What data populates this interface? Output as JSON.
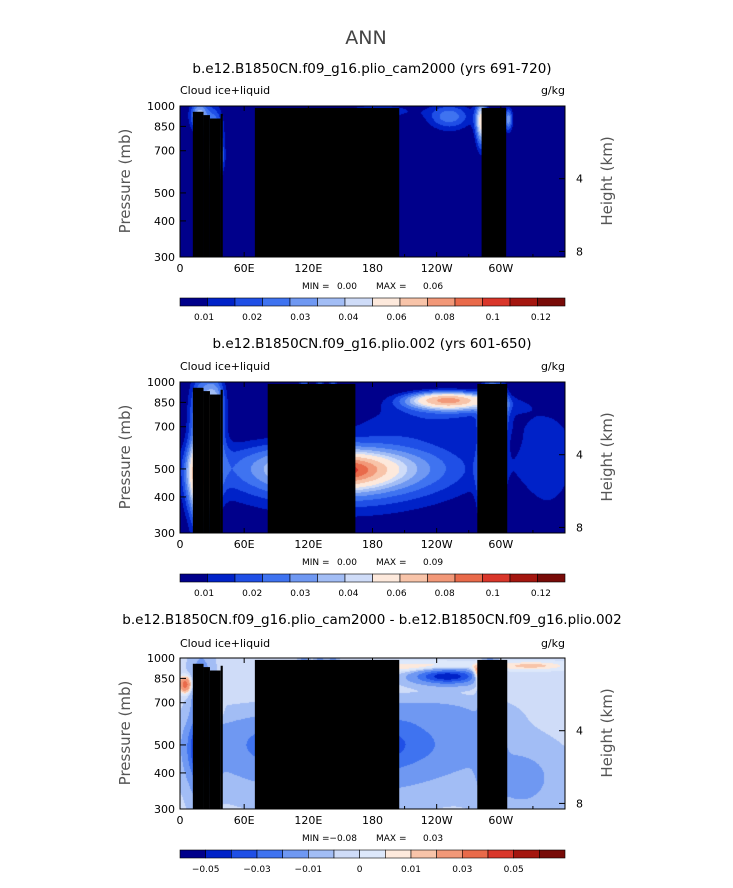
{
  "figure": {
    "title": "ANN"
  },
  "colormaps": {
    "abs": [
      "#00008b",
      "#0022c8",
      "#1f4fe6",
      "#3f73f0",
      "#6f98f2",
      "#a2bdf5",
      "#cfdcf8",
      "#fde9dc",
      "#f8c4a9",
      "#f29878",
      "#e96a4a",
      "#d9362a",
      "#a4160f",
      "#780b08"
    ],
    "diff": [
      "#00008b",
      "#0022c8",
      "#1f4fe6",
      "#3f73f0",
      "#6f98f2",
      "#a2bdf5",
      "#cfdcf8",
      "#dde8fb",
      "#fde9dc",
      "#f8c4a9",
      "#f29878",
      "#e96a4a",
      "#d9362a",
      "#a4160f",
      "#780b08"
    ]
  },
  "chart_data": [
    {
      "type": "heatmap",
      "title": "b.e12.B1850CN.f09_g16.plio_cam2000 (yrs 691-720)",
      "field_label": "Cloud ice+liquid",
      "units_label": "g/kg",
      "ylabel": "Pressure (mb)",
      "y2label": "Height (km)",
      "xticks": [
        "0",
        "60E",
        "120E",
        "180",
        "120W",
        "60W"
      ],
      "xtick_values": [
        0,
        60,
        120,
        180,
        240,
        300
      ],
      "xlim": [
        0,
        360
      ],
      "yticks": [
        "300",
        "400",
        "500",
        "700",
        "850",
        "1000"
      ],
      "ytick_values": [
        300,
        400,
        500,
        700,
        850,
        1000
      ],
      "ylim": [
        1000,
        300
      ],
      "y2ticks": [
        "8",
        "4"
      ],
      "y2tick_values": [
        8,
        4
      ],
      "stats": {
        "min_label": "MIN =",
        "min": "0.00",
        "max_label": "MAX =",
        "max": "0.06"
      },
      "colorbar": {
        "levels": [
          "0.01",
          "0.02",
          "0.03",
          "0.04",
          "0.06",
          "0.08",
          "0.1",
          "0.12"
        ]
      },
      "features": [
        {
          "lon": 32,
          "p": 660,
          "dlon": 5,
          "dp": 55,
          "v": 0.035
        },
        {
          "lon": 32,
          "p": 790,
          "dlon": 6,
          "dp": 140,
          "v": 0.025
        },
        {
          "lon": 18,
          "p": 930,
          "dlon": 6,
          "dp": 80,
          "v": 0.03
        },
        {
          "lon": 116,
          "p": 880,
          "dlon": 3,
          "dp": 70,
          "v": 0.018
        },
        {
          "lon": 131,
          "p": 870,
          "dlon": 2.5,
          "dp": 60,
          "v": 0.015
        },
        {
          "lon": 143,
          "p": 880,
          "dlon": 2.5,
          "dp": 60,
          "v": 0.015
        },
        {
          "lon": 185,
          "p": 960,
          "dlon": 25,
          "dp": 40,
          "v": 0.012
        },
        {
          "lon": 252,
          "p": 920,
          "dlon": 15,
          "dp": 70,
          "v": 0.02
        },
        {
          "lon": 282,
          "p": 880,
          "dlon": 4,
          "dp": 110,
          "v": 0.04
        },
        {
          "lon": 307,
          "p": 900,
          "dlon": 3,
          "dp": 60,
          "v": 0.025
        },
        {
          "lon": 292,
          "p": 330,
          "dlon": 5,
          "dp": 25,
          "v": 0.015
        }
      ],
      "topography": [
        {
          "lon": [
            12,
            22
          ],
          "p": 955
        },
        {
          "lon": [
            22,
            28
          ],
          "p": 930
        },
        {
          "lon": [
            28,
            38
          ],
          "p": 905
        },
        {
          "lon": [
            38,
            40
          ],
          "p": 940
        },
        {
          "lon": [
            70,
            205
          ],
          "p": 985
        },
        {
          "lon": [
            282,
            305
          ],
          "p": 985
        }
      ]
    },
    {
      "type": "heatmap",
      "title": "b.e12.B1850CN.f09_g16.plio.002 (yrs 601-650)",
      "field_label": "Cloud ice+liquid",
      "units_label": "g/kg",
      "ylabel": "Pressure (mb)",
      "y2label": "Height (km)",
      "xticks": [
        "0",
        "60E",
        "120E",
        "180",
        "120W",
        "60W"
      ],
      "xtick_values": [
        0,
        60,
        120,
        180,
        240,
        300
      ],
      "xlim": [
        0,
        360
      ],
      "yticks": [
        "300",
        "400",
        "500",
        "700",
        "850",
        "1000"
      ],
      "ytick_values": [
        300,
        400,
        500,
        700,
        850,
        1000
      ],
      "ylim": [
        1000,
        300
      ],
      "y2ticks": [
        "8",
        "4"
      ],
      "y2tick_values": [
        8,
        4
      ],
      "stats": {
        "min_label": "MIN =",
        "min": "0.00",
        "max_label": "MAX =",
        "max": "0.09"
      },
      "colorbar": {
        "levels": [
          "0.01",
          "0.02",
          "0.03",
          "0.04",
          "0.06",
          "0.08",
          "0.1",
          "0.12"
        ]
      },
      "features": [
        {
          "lon": 150,
          "p": 500,
          "dlon": 75,
          "dp": 85,
          "v": 0.04
        },
        {
          "lon": 150,
          "p": 495,
          "dlon": 28,
          "dp": 38,
          "v": 0.045
        },
        {
          "lon": 20,
          "p": 470,
          "dlon": 9,
          "dp": 85,
          "v": 0.045
        },
        {
          "lon": 20,
          "p": 700,
          "dlon": 8,
          "dp": 250,
          "v": 0.03
        },
        {
          "lon": 33,
          "p": 800,
          "dlon": 7,
          "dp": 180,
          "v": 0.028
        },
        {
          "lon": 290,
          "p": 480,
          "dlon": 6,
          "dp": 120,
          "v": 0.045
        },
        {
          "lon": 290,
          "p": 720,
          "dlon": 6,
          "dp": 220,
          "v": 0.035
        },
        {
          "lon": 300,
          "p": 820,
          "dlon": 5,
          "dp": 130,
          "v": 0.02
        },
        {
          "lon": 250,
          "p": 870,
          "dlon": 26,
          "dp": 40,
          "v": 0.05
        },
        {
          "lon": 260,
          "p": 830,
          "dlon": 40,
          "dp": 45,
          "v": 0.015
        },
        {
          "lon": 230,
          "p": 720,
          "dlon": 55,
          "dp": 70,
          "v": 0.01
        },
        {
          "lon": 116,
          "p": 760,
          "dlon": 3.5,
          "dp": 250,
          "v": 0.024
        },
        {
          "lon": 131,
          "p": 760,
          "dlon": 3,
          "dp": 250,
          "v": 0.022
        },
        {
          "lon": 143,
          "p": 760,
          "dlon": 3,
          "dp": 250,
          "v": 0.022
        },
        {
          "lon": 345,
          "p": 560,
          "dlon": 22,
          "dp": 180,
          "v": 0.01
        }
      ],
      "topography": [
        {
          "lon": [
            12,
            22
          ],
          "p": 955
        },
        {
          "lon": [
            22,
            28
          ],
          "p": 930
        },
        {
          "lon": [
            28,
            38
          ],
          "p": 905
        },
        {
          "lon": [
            38,
            40
          ],
          "p": 940
        },
        {
          "lon": [
            82,
            164
          ],
          "p": 985
        },
        {
          "lon": [
            278,
            306
          ],
          "p": 985
        }
      ]
    },
    {
      "type": "heatmap",
      "title": "b.e12.B1850CN.f09_g16.plio_cam2000 - b.e12.B1850CN.f09_g16.plio.002",
      "field_label": "Cloud ice+liquid",
      "units_label": "g/kg",
      "ylabel": "Pressure (mb)",
      "y2label": "Height (km)",
      "xticks": [
        "0",
        "60E",
        "120E",
        "180",
        "120W",
        "60W"
      ],
      "xtick_values": [
        0,
        60,
        120,
        180,
        240,
        300
      ],
      "xlim": [
        0,
        360
      ],
      "yticks": [
        "300",
        "400",
        "500",
        "700",
        "850",
        "1000"
      ],
      "ytick_values": [
        300,
        400,
        500,
        700,
        850,
        1000
      ],
      "ylim": [
        1000,
        300
      ],
      "y2ticks": [
        "8",
        "4"
      ],
      "y2tick_values": [
        8,
        4
      ],
      "stats": {
        "min_label": "MIN =",
        "min": "−0.08",
        "max_label": "MAX =",
        "max": "0.03"
      },
      "colorbar": {
        "levels": [
          "−0.05",
          "−0.03",
          "−0.01",
          "0",
          "0.01",
          "0.03",
          "0.05"
        ]
      },
      "features": [
        {
          "lon": 150,
          "p": 500,
          "dlon": 70,
          "dp": 85,
          "v": -0.035
        },
        {
          "lon": 150,
          "p": 500,
          "dlon": 26,
          "dp": 38,
          "v": -0.03
        },
        {
          "lon": 20,
          "p": 480,
          "dlon": 8,
          "dp": 70,
          "v": -0.04
        },
        {
          "lon": 20,
          "p": 700,
          "dlon": 7,
          "dp": 220,
          "v": -0.015
        },
        {
          "lon": 290,
          "p": 480,
          "dlon": 6,
          "dp": 80,
          "v": -0.04
        },
        {
          "lon": 290,
          "p": 720,
          "dlon": 5,
          "dp": 200,
          "v": -0.02
        },
        {
          "lon": 250,
          "p": 865,
          "dlon": 20,
          "dp": 35,
          "v": -0.045
        },
        {
          "lon": 116,
          "p": 760,
          "dlon": 3,
          "dp": 200,
          "v": -0.02
        },
        {
          "lon": 131,
          "p": 760,
          "dlon": 3,
          "dp": 200,
          "v": -0.02
        },
        {
          "lon": 143,
          "p": 760,
          "dlon": 3,
          "dp": 200,
          "v": -0.02
        },
        {
          "lon": 34,
          "p": 670,
          "dlon": 3,
          "dp": 40,
          "v": 0.03
        },
        {
          "lon": 5,
          "p": 810,
          "dlon": 4,
          "dp": 35,
          "v": 0.03
        },
        {
          "lon": 280,
          "p": 880,
          "dlon": 4,
          "dp": 40,
          "v": 0.03
        },
        {
          "lon": 230,
          "p": 930,
          "dlon": 40,
          "dp": 30,
          "v": 0.01
        },
        {
          "lon": 330,
          "p": 940,
          "dlon": 25,
          "dp": 25,
          "v": 0.01
        },
        {
          "lon": 320,
          "p": 380,
          "dlon": 25,
          "dp": 70,
          "v": -0.008
        },
        {
          "lon": 230,
          "p": 650,
          "dlon": 40,
          "dp": 50,
          "v": -0.008
        }
      ],
      "diff_base": -0.004,
      "topography": [
        {
          "lon": [
            12,
            22
          ],
          "p": 955
        },
        {
          "lon": [
            22,
            28
          ],
          "p": 930
        },
        {
          "lon": [
            28,
            38
          ],
          "p": 905
        },
        {
          "lon": [
            38,
            40
          ],
          "p": 940
        },
        {
          "lon": [
            70,
            205
          ],
          "p": 985
        },
        {
          "lon": [
            278,
            306
          ],
          "p": 985
        }
      ]
    }
  ]
}
